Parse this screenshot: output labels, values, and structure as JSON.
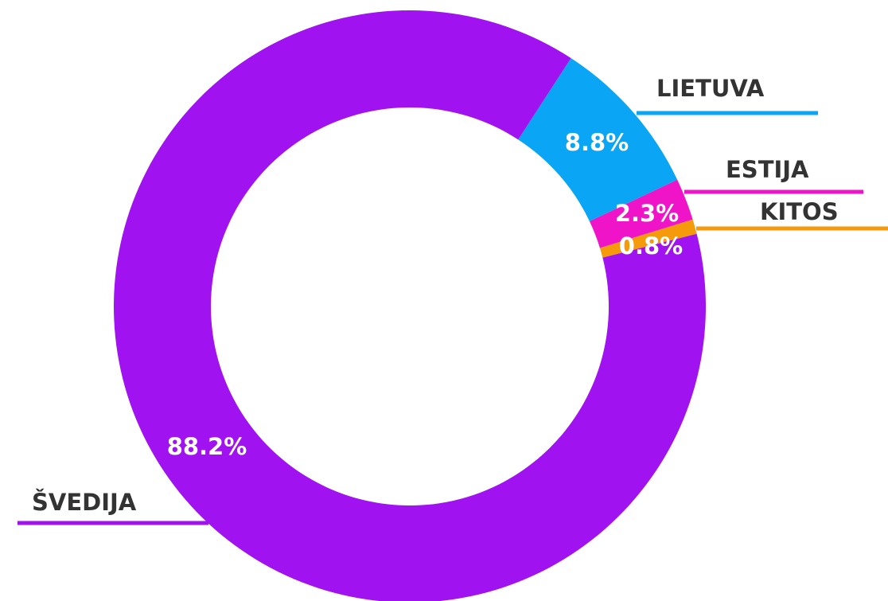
{
  "chart_data": {
    "type": "pie",
    "categories": [
      "LIETUVA",
      "ESTIJA",
      "KITOS",
      "ŠVEDIJA"
    ],
    "values": [
      8.8,
      2.3,
      0.8,
      88.2
    ],
    "value_labels": [
      "8.8%",
      "2.3%",
      "0.8%",
      "88.2%"
    ],
    "colors": [
      "#0aa6f5",
      "#f014c8",
      "#f59a0a",
      "#a012f0"
    ]
  }
}
